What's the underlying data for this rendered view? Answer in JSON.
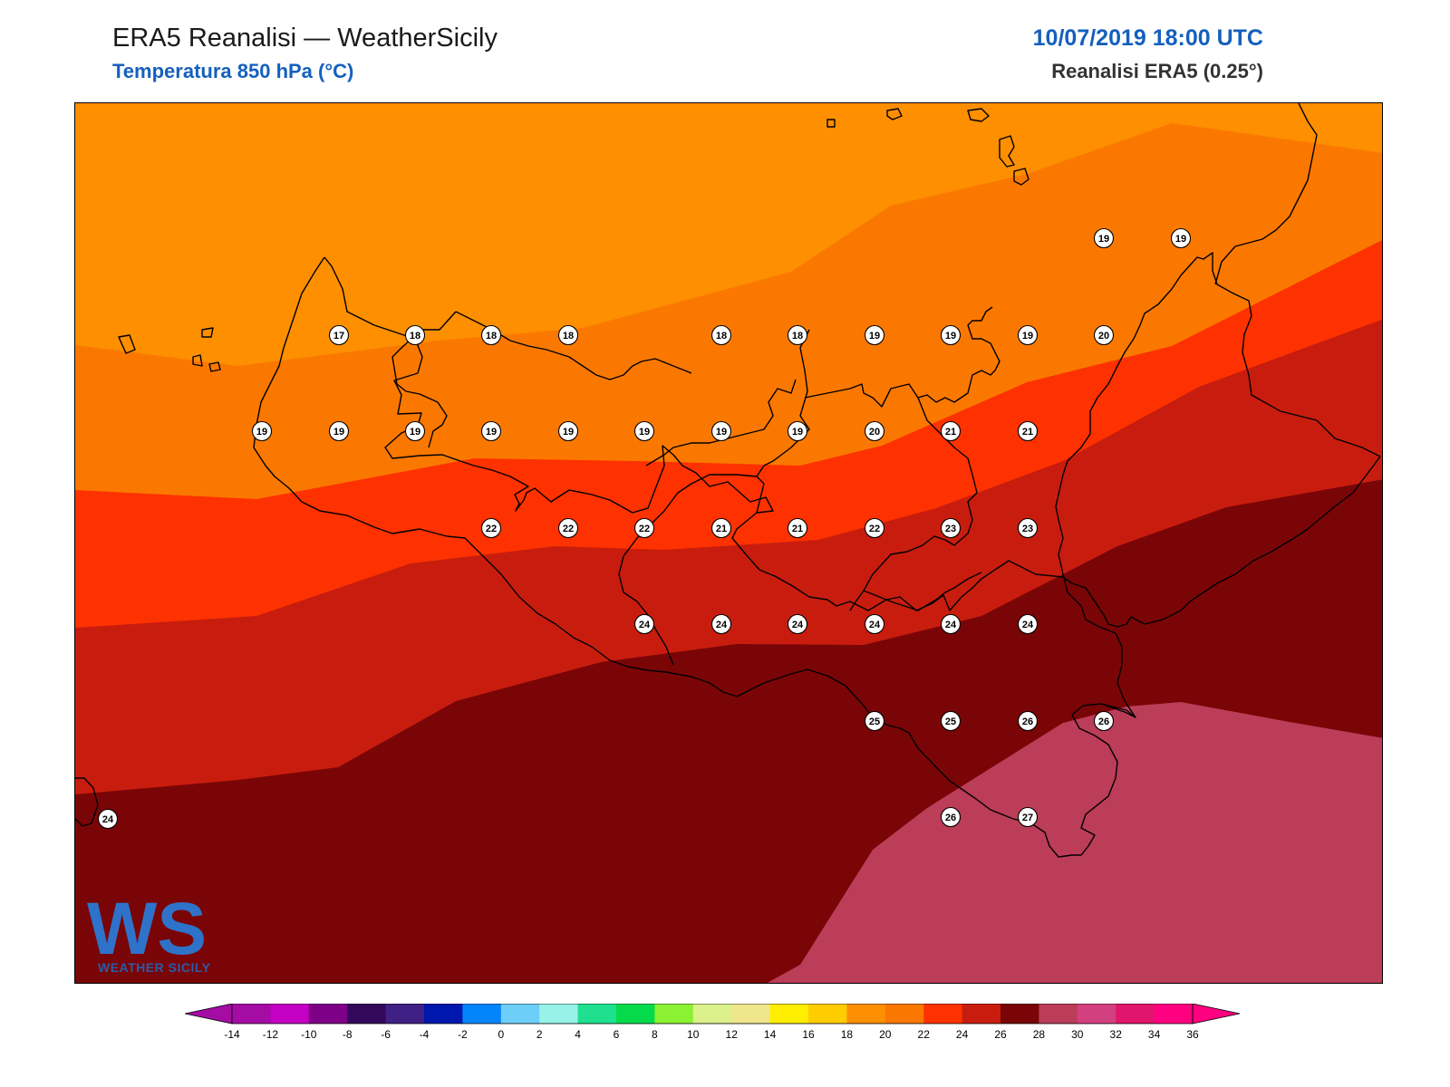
{
  "header": {
    "title": "ERA5 Reanalisi — WeatherSicily",
    "subtitle": "Temperatura 850 hPa (°C)",
    "date": "10/07/2019 18:00 UTC",
    "source": "Reanalisi ERA5 (0.25°)"
  },
  "logo": {
    "mark": "WS",
    "caption": "WEATHER SICILY"
  },
  "bands": [
    {
      "range": "16-18",
      "color": "#fd8f00"
    },
    {
      "range": "18-20",
      "color": "#fb7800"
    },
    {
      "range": "20-22",
      "color": "#fd3200"
    },
    {
      "range": "22-24",
      "color": "#c81d0e"
    },
    {
      "range": "24-26",
      "color": "#7a0507"
    },
    {
      "range": "26-28",
      "color": "#bb3d58"
    }
  ],
  "colorbar": {
    "colors": [
      "#a40ca4",
      "#c300c3",
      "#7e0087",
      "#33085a",
      "#3f2085",
      "#0017ad",
      "#0384fb",
      "#6dcef8",
      "#98f2e8",
      "#1ee08e",
      "#05da4c",
      "#8cf132",
      "#dcf08c",
      "#f0e68c",
      "#ffee00",
      "#ffcc00",
      "#fd8f00",
      "#fb7800",
      "#fd3200",
      "#c81d0e",
      "#7a0507",
      "#bb3d58",
      "#d34080",
      "#e0166c",
      "#ff0080"
    ],
    "labels": [
      "-14",
      "-12",
      "-10",
      "-8",
      "-6",
      "-4",
      "-2",
      "0",
      "2",
      "4",
      "6",
      "8",
      "10",
      "12",
      "14",
      "16",
      "18",
      "20",
      "22",
      "24",
      "26",
      "28",
      "30",
      "32",
      "34",
      "36"
    ]
  },
  "stations": [
    {
      "id": "pantelleria",
      "value": "24"
    },
    {
      "id": "row1-1",
      "value": "17"
    },
    {
      "id": "row1-2",
      "value": "18"
    },
    {
      "id": "row1-3",
      "value": "18"
    },
    {
      "id": "row1-4",
      "value": "18"
    },
    {
      "id": "row1-5",
      "value": "18"
    },
    {
      "id": "row1-6",
      "value": "18"
    },
    {
      "id": "row1-7",
      "value": "19"
    },
    {
      "id": "row1-8",
      "value": "19"
    },
    {
      "id": "row1-9",
      "value": "19"
    },
    {
      "id": "row1-10",
      "value": "20"
    },
    {
      "id": "ne-1",
      "value": "19"
    },
    {
      "id": "ne-2",
      "value": "19"
    },
    {
      "id": "row2-1",
      "value": "19"
    },
    {
      "id": "row2-2",
      "value": "19"
    },
    {
      "id": "row2-3",
      "value": "19"
    },
    {
      "id": "row2-4",
      "value": "19"
    },
    {
      "id": "row2-5",
      "value": "19"
    },
    {
      "id": "row2-6",
      "value": "19"
    },
    {
      "id": "row2-7",
      "value": "19"
    },
    {
      "id": "row2-8",
      "value": "19"
    },
    {
      "id": "row2-9",
      "value": "20"
    },
    {
      "id": "row2-10",
      "value": "21"
    },
    {
      "id": "row2-11",
      "value": "21"
    },
    {
      "id": "row3-1",
      "value": "22"
    },
    {
      "id": "row3-2",
      "value": "22"
    },
    {
      "id": "row3-3",
      "value": "22"
    },
    {
      "id": "row3-4",
      "value": "21"
    },
    {
      "id": "row3-5",
      "value": "21"
    },
    {
      "id": "row3-6",
      "value": "22"
    },
    {
      "id": "row3-7",
      "value": "23"
    },
    {
      "id": "row3-8",
      "value": "23"
    },
    {
      "id": "row4-1",
      "value": "24"
    },
    {
      "id": "row4-2",
      "value": "24"
    },
    {
      "id": "row4-3",
      "value": "24"
    },
    {
      "id": "row4-4",
      "value": "24"
    },
    {
      "id": "row4-5",
      "value": "24"
    },
    {
      "id": "row4-6",
      "value": "24"
    },
    {
      "id": "row5-1",
      "value": "25"
    },
    {
      "id": "row5-2",
      "value": "25"
    },
    {
      "id": "row5-3",
      "value": "26"
    },
    {
      "id": "row5-4",
      "value": "26"
    },
    {
      "id": "row6-1",
      "value": "26"
    },
    {
      "id": "row6-2",
      "value": "27"
    }
  ]
}
